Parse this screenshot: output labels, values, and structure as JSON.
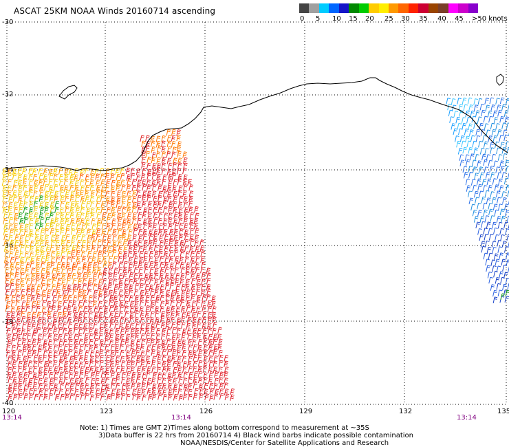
{
  "title": "ASCAT 25KM NOAA Winds 20160714 ascending",
  "colorbar": {
    "colors": [
      "#444444",
      "#a0a0a0",
      "#00ccff",
      "#0066ff",
      "#1515c8",
      "#008800",
      "#00cc00",
      "#ffcc00",
      "#ffee00",
      "#ff9900",
      "#ff6600",
      "#ff2200",
      "#cc0033",
      "#994400",
      "#7a3f2a",
      "#ff00ff",
      "#cc00cc",
      "#8800cc"
    ],
    "labels": [
      "0",
      "5",
      "10",
      "15",
      "20",
      "25",
      "30",
      "35",
      "40",
      "45",
      ">50 knots"
    ]
  },
  "axes": {
    "lat_labels": [
      "-30",
      "-32",
      "-34",
      "-36",
      "-38",
      "-40"
    ],
    "lon_labels": [
      "120",
      "123",
      "126",
      "129",
      "132",
      "135"
    ]
  },
  "pass_times": [
    "13:14",
    "13:14",
    "13:14"
  ],
  "notes": {
    "line1": "Note: 1) Times are GMT 2)Times along bottom correspond to measurement at ~35S",
    "line2": "3)Data buffer is 22 hrs from 20160714 4) Black wind barbs indicate possible contamination",
    "line3": "NOAA/NESDIS/Center for Satellite Applications and Research"
  },
  "map": {
    "lat_range": [
      -40,
      -30
    ],
    "lon_range": [
      120,
      135
    ],
    "grid": "dotted",
    "coastline_color": "#000000"
  }
}
